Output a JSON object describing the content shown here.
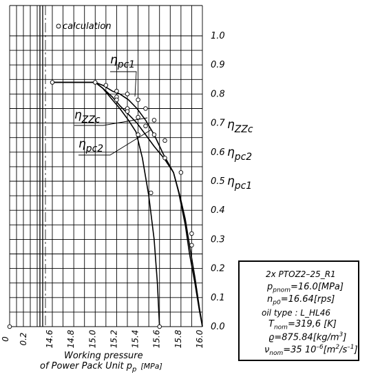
{
  "chart_data": {
    "type": "line",
    "xlabel": [
      "Working pressure",
      "of Power Pack Unit p",
      "[MPa]"
    ],
    "xlabel_sub": "p",
    "x_ticks": [
      "0",
      "0.2",
      "14.6",
      "14.8",
      "15.0",
      "15.2",
      "15.4",
      "15.6",
      "15.8",
      "16.0"
    ],
    "y_ticks": [
      "0.0",
      "0.1",
      "0.2",
      "0.3",
      "0.4",
      "0.5",
      "0.6",
      "0.7",
      "0.8",
      "0.9",
      "1.0"
    ],
    "ylim": [
      0,
      1.0
    ],
    "xlim_main": [
      14.6,
      16.0
    ],
    "legend": {
      "marker": "○",
      "label": "calculation",
      "placement": "top-left"
    },
    "grid": true,
    "series": [
      {
        "name": "ηpc1",
        "label_main": "η",
        "label_sub": "pc1",
        "points": [
          [
            14.6,
            0.84
          ],
          [
            15.0,
            0.84
          ],
          [
            15.07,
            0.83
          ],
          [
            15.16,
            0.81
          ],
          [
            15.23,
            0.8
          ],
          [
            15.31,
            0.78
          ],
          [
            15.39,
            0.75
          ],
          [
            15.47,
            0.71
          ],
          [
            15.55,
            0.66
          ],
          [
            15.64,
            0.59
          ],
          [
            15.73,
            0.53
          ],
          [
            15.78,
            0.46
          ],
          [
            15.84,
            0.35
          ],
          [
            15.88,
            0.25
          ],
          [
            15.93,
            0.15
          ],
          [
            15.97,
            0.06
          ],
          [
            16.0,
            0.0
          ]
        ]
      },
      {
        "name": "ηZZc",
        "label_main": "η",
        "label_sub": "ZZc",
        "points": [
          [
            14.6,
            0.84
          ],
          [
            15.0,
            0.84
          ],
          [
            15.07,
            0.82
          ],
          [
            15.16,
            0.79
          ],
          [
            15.23,
            0.76
          ],
          [
            15.31,
            0.73
          ],
          [
            15.39,
            0.7
          ],
          [
            15.47,
            0.66
          ],
          [
            15.55,
            0.62
          ],
          [
            15.64,
            0.58
          ],
          [
            15.73,
            0.53
          ],
          [
            15.79,
            0.45
          ],
          [
            15.84,
            0.37
          ],
          [
            15.88,
            0.28
          ],
          [
            15.93,
            0.17
          ],
          [
            15.97,
            0.07
          ],
          [
            16.0,
            0.0
          ]
        ]
      },
      {
        "name": "ηpc2",
        "label_main": "η",
        "label_sub": "pc2",
        "points": [
          [
            14.6,
            0.84
          ],
          [
            15.0,
            0.84
          ],
          [
            15.07,
            0.82
          ],
          [
            15.16,
            0.78
          ],
          [
            15.23,
            0.75
          ],
          [
            15.31,
            0.71
          ],
          [
            15.38,
            0.67
          ],
          [
            15.44,
            0.58
          ],
          [
            15.5,
            0.45
          ],
          [
            15.55,
            0.3
          ],
          [
            15.58,
            0.15
          ],
          [
            15.6,
            0.0
          ]
        ]
      }
    ],
    "markers": [
      [
        14.6,
        0.84
      ],
      [
        15.0,
        0.84
      ],
      [
        15.1,
        0.83
      ],
      [
        15.2,
        0.81
      ],
      [
        15.3,
        0.8
      ],
      [
        15.4,
        0.78
      ],
      [
        15.47,
        0.75
      ],
      [
        15.55,
        0.71
      ],
      [
        15.65,
        0.64
      ],
      [
        15.2,
        0.79
      ],
      [
        15.3,
        0.75
      ],
      [
        15.4,
        0.72
      ],
      [
        15.47,
        0.69
      ],
      [
        15.55,
        0.66
      ],
      [
        15.65,
        0.58
      ],
      [
        15.2,
        0.78
      ],
      [
        15.3,
        0.74
      ],
      [
        15.4,
        0.66
      ],
      [
        15.52,
        0.46
      ],
      [
        15.8,
        0.53
      ],
      [
        15.9,
        0.32
      ],
      [
        15.9,
        0.28
      ],
      [
        15.6,
        0.0
      ]
    ],
    "right_labels": [
      {
        "main": "η",
        "sub": "ZZc"
      },
      {
        "main": "η",
        "sub": "pc2"
      },
      {
        "main": "η",
        "sub": "pc1"
      }
    ],
    "inner_labels": [
      {
        "main": "η",
        "sub": "pc1"
      },
      {
        "main": "η",
        "sub": "ZZc"
      },
      {
        "main": "η",
        "sub": "pc2"
      }
    ]
  },
  "info": {
    "title": "2x PTOZ2–25_R1",
    "p_nom_label": "p",
    "p_nom_sub": "pnom",
    "p_nom_value": "=16.0[MPa]",
    "n_label": "n",
    "n_sub": "p0",
    "n_value": "=16.64[rps]",
    "oil_type": "oil type : L_HL46",
    "t_label": "T",
    "t_sub": "nom",
    "t_value": "=319,6  [K]",
    "rho_label": "ϱ",
    "rho_value": "=875.84[kg/m",
    "rho_exp": "3",
    "rho_close": "]",
    "nu_label": "ν",
    "nu_sub": "nom",
    "nu_value": "=35 10",
    "nu_exp": "–6",
    "nu_unit": "[m",
    "nu_exp2": "2",
    "nu_unit2": "/s",
    "nu_exp3": "–1",
    "nu_close": "]"
  }
}
